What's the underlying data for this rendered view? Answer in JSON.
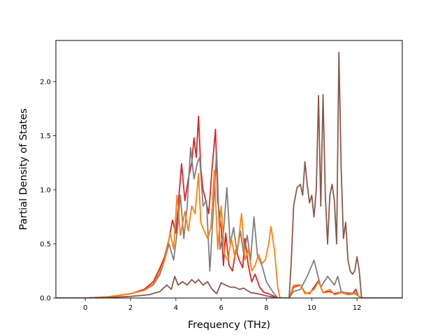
{
  "chart_data": {
    "type": "line",
    "title": "",
    "xlabel": "Frequency (THz)",
    "ylabel": "Partial Density of States",
    "xlim": [
      -1.3,
      14.0
    ],
    "ylim": [
      0.0,
      2.38
    ],
    "xticks": [
      0,
      2,
      4,
      6,
      8,
      10,
      12
    ],
    "yticks": [
      0.0,
      0.5,
      1.0,
      1.5,
      2.0
    ],
    "ytick_labels": [
      "0.0",
      "0.5",
      "1.0",
      "1.5",
      "2.0"
    ],
    "grid": false,
    "legend": "none",
    "series": [
      {
        "color": "#d62728",
        "points": [
          [
            -1.3,
            0
          ],
          [
            0,
            0
          ],
          [
            1,
            0.01
          ],
          [
            2,
            0.04
          ],
          [
            2.6,
            0.08
          ],
          [
            3.0,
            0.15
          ],
          [
            3.3,
            0.28
          ],
          [
            3.5,
            0.38
          ],
          [
            3.7,
            0.55
          ],
          [
            3.85,
            0.72
          ],
          [
            4.0,
            0.6
          ],
          [
            4.1,
            0.85
          ],
          [
            4.25,
            1.24
          ],
          [
            4.4,
            0.9
          ],
          [
            4.55,
            1.1
          ],
          [
            4.7,
            1.25
          ],
          [
            4.8,
            1.48
          ],
          [
            4.9,
            1.3
          ],
          [
            5.0,
            1.68
          ],
          [
            5.1,
            1.2
          ],
          [
            5.2,
            1.0
          ],
          [
            5.3,
            0.92
          ],
          [
            5.45,
            0.78
          ],
          [
            5.6,
            1.2
          ],
          [
            5.75,
            1.56
          ],
          [
            5.85,
            0.9
          ],
          [
            6.0,
            0.65
          ],
          [
            6.1,
            0.3
          ],
          [
            6.2,
            0.6
          ],
          [
            6.35,
            0.3
          ],
          [
            6.5,
            0.25
          ],
          [
            6.65,
            0.45
          ],
          [
            6.8,
            0.35
          ],
          [
            6.95,
            0.28
          ],
          [
            7.05,
            0.55
          ],
          [
            7.2,
            0.3
          ],
          [
            7.35,
            0.15
          ],
          [
            7.5,
            0.22
          ],
          [
            7.7,
            0.1
          ],
          [
            7.9,
            0.05
          ],
          [
            8.1,
            0.04
          ],
          [
            8.3,
            0.02
          ],
          [
            8.5,
            0.0
          ],
          [
            9.0,
            0.0
          ],
          [
            9.2,
            0.1
          ],
          [
            9.5,
            0.12
          ],
          [
            9.7,
            0.05
          ],
          [
            9.9,
            0.04
          ],
          [
            10.1,
            0.1
          ],
          [
            10.3,
            0.16
          ],
          [
            10.5,
            0.05
          ],
          [
            10.8,
            0.06
          ],
          [
            11.0,
            0.04
          ],
          [
            11.2,
            0.05
          ],
          [
            11.5,
            0.05
          ],
          [
            11.8,
            0.04
          ],
          [
            11.95,
            0.08
          ],
          [
            12.05,
            0.02
          ],
          [
            12.2,
            0.0
          ],
          [
            14.0,
            0.0
          ]
        ]
      },
      {
        "color": "#7f7f7f",
        "points": [
          [
            -1.3,
            0
          ],
          [
            0,
            0
          ],
          [
            1,
            0.01
          ],
          [
            2,
            0.04
          ],
          [
            2.6,
            0.07
          ],
          [
            3.0,
            0.12
          ],
          [
            3.3,
            0.22
          ],
          [
            3.5,
            0.35
          ],
          [
            3.7,
            0.5
          ],
          [
            3.9,
            0.35
          ],
          [
            4.05,
            0.6
          ],
          [
            4.2,
            0.95
          ],
          [
            4.35,
            0.55
          ],
          [
            4.5,
            0.85
          ],
          [
            4.65,
            1.39
          ],
          [
            4.8,
            1.1
          ],
          [
            4.95,
            1.25
          ],
          [
            5.05,
            1.3
          ],
          [
            5.2,
            0.85
          ],
          [
            5.35,
            0.9
          ],
          [
            5.5,
            0.25
          ],
          [
            5.65,
            0.8
          ],
          [
            5.8,
            1.35
          ],
          [
            5.95,
            0.45
          ],
          [
            6.1,
            0.6
          ],
          [
            6.25,
            1.02
          ],
          [
            6.4,
            0.5
          ],
          [
            6.55,
            0.65
          ],
          [
            6.7,
            0.42
          ],
          [
            6.85,
            0.62
          ],
          [
            7.0,
            0.4
          ],
          [
            7.15,
            0.58
          ],
          [
            7.3,
            0.35
          ],
          [
            7.45,
            0.75
          ],
          [
            7.6,
            0.4
          ],
          [
            7.8,
            0.3
          ],
          [
            8.0,
            0.15
          ],
          [
            8.3,
            0.05
          ],
          [
            8.5,
            0.0
          ],
          [
            9.0,
            0.0
          ],
          [
            9.2,
            0.06
          ],
          [
            9.5,
            0.08
          ],
          [
            9.8,
            0.2
          ],
          [
            10.1,
            0.35
          ],
          [
            10.4,
            0.1
          ],
          [
            10.7,
            0.2
          ],
          [
            11.0,
            0.12
          ],
          [
            11.15,
            0.2
          ],
          [
            11.3,
            0.06
          ],
          [
            11.6,
            0.04
          ],
          [
            11.9,
            0.05
          ],
          [
            12.05,
            0.02
          ],
          [
            12.2,
            0.0
          ],
          [
            14.0,
            0.0
          ]
        ]
      },
      {
        "color": "#ff7f0e",
        "points": [
          [
            -1.3,
            0
          ],
          [
            0,
            0
          ],
          [
            1,
            0.01
          ],
          [
            2,
            0.04
          ],
          [
            2.6,
            0.07
          ],
          [
            3.0,
            0.13
          ],
          [
            3.3,
            0.25
          ],
          [
            3.5,
            0.35
          ],
          [
            3.75,
            0.6
          ],
          [
            3.9,
            0.45
          ],
          [
            4.05,
            0.95
          ],
          [
            4.2,
            0.58
          ],
          [
            4.4,
            0.8
          ],
          [
            4.55,
            0.62
          ],
          [
            4.7,
            0.85
          ],
          [
            4.85,
            0.78
          ],
          [
            5.0,
            1.15
          ],
          [
            5.1,
            0.7
          ],
          [
            5.25,
            0.62
          ],
          [
            5.4,
            0.55
          ],
          [
            5.55,
            0.65
          ],
          [
            5.7,
            1.18
          ],
          [
            5.85,
            0.45
          ],
          [
            6.0,
            0.85
          ],
          [
            6.15,
            0.4
          ],
          [
            6.3,
            0.35
          ],
          [
            6.45,
            0.55
          ],
          [
            6.6,
            0.38
          ],
          [
            6.75,
            0.5
          ],
          [
            6.9,
            0.78
          ],
          [
            7.05,
            0.35
          ],
          [
            7.2,
            0.45
          ],
          [
            7.35,
            0.25
          ],
          [
            7.5,
            0.3
          ],
          [
            7.65,
            0.4
          ],
          [
            7.8,
            0.32
          ],
          [
            7.95,
            0.35
          ],
          [
            8.1,
            0.5
          ],
          [
            8.2,
            0.66
          ],
          [
            8.35,
            0.45
          ],
          [
            8.5,
            0.1
          ],
          [
            8.6,
            0.0
          ],
          [
            9.0,
            0.0
          ],
          [
            9.2,
            0.12
          ],
          [
            9.5,
            0.12
          ],
          [
            9.7,
            0.04
          ],
          [
            9.9,
            0.05
          ],
          [
            10.1,
            0.08
          ],
          [
            10.3,
            0.15
          ],
          [
            10.5,
            0.05
          ],
          [
            10.8,
            0.08
          ],
          [
            11.0,
            0.03
          ],
          [
            11.3,
            0.05
          ],
          [
            11.6,
            0.03
          ],
          [
            11.9,
            0.04
          ],
          [
            12.05,
            0.02
          ],
          [
            12.2,
            0.0
          ],
          [
            14.0,
            0.0
          ]
        ]
      },
      {
        "color": "#8c564b",
        "points": [
          [
            -1.3,
            0
          ],
          [
            0,
            0
          ],
          [
            1,
            0.005
          ],
          [
            2,
            0.015
          ],
          [
            2.8,
            0.03
          ],
          [
            3.3,
            0.06
          ],
          [
            3.6,
            0.12
          ],
          [
            3.8,
            0.08
          ],
          [
            3.95,
            0.2
          ],
          [
            4.1,
            0.12
          ],
          [
            4.3,
            0.15
          ],
          [
            4.5,
            0.12
          ],
          [
            4.7,
            0.17
          ],
          [
            4.85,
            0.14
          ],
          [
            5.0,
            0.17
          ],
          [
            5.2,
            0.12
          ],
          [
            5.4,
            0.15
          ],
          [
            5.6,
            0.08
          ],
          [
            5.8,
            0.04
          ],
          [
            6.0,
            0.14
          ],
          [
            6.2,
            0.12
          ],
          [
            6.4,
            0.1
          ],
          [
            6.6,
            0.1
          ],
          [
            6.8,
            0.08
          ],
          [
            7.0,
            0.09
          ],
          [
            7.3,
            0.05
          ],
          [
            7.6,
            0.04
          ],
          [
            8.0,
            0.02
          ],
          [
            8.5,
            0.0
          ],
          [
            9.0,
            0.0
          ],
          [
            9.1,
            0.35
          ],
          [
            9.2,
            0.85
          ],
          [
            9.35,
            1.02
          ],
          [
            9.5,
            1.05
          ],
          [
            9.6,
            0.95
          ],
          [
            9.7,
            1.26
          ],
          [
            9.8,
            1.05
          ],
          [
            9.9,
            0.88
          ],
          [
            10.0,
            0.95
          ],
          [
            10.1,
            0.75
          ],
          [
            10.2,
            1.0
          ],
          [
            10.3,
            1.87
          ],
          [
            10.4,
            0.85
          ],
          [
            10.5,
            1.88
          ],
          [
            10.6,
            0.95
          ],
          [
            10.7,
            0.5
          ],
          [
            10.8,
            0.95
          ],
          [
            10.9,
            1.05
          ],
          [
            11.0,
            0.9
          ],
          [
            11.1,
            0.5
          ],
          [
            11.2,
            2.27
          ],
          [
            11.3,
            1.2
          ],
          [
            11.4,
            0.55
          ],
          [
            11.5,
            0.7
          ],
          [
            11.6,
            0.35
          ],
          [
            11.7,
            0.25
          ],
          [
            11.8,
            0.22
          ],
          [
            11.9,
            0.25
          ],
          [
            12.0,
            0.38
          ],
          [
            12.1,
            0.25
          ],
          [
            12.2,
            0.0
          ],
          [
            14.0,
            0.0
          ]
        ]
      }
    ]
  }
}
